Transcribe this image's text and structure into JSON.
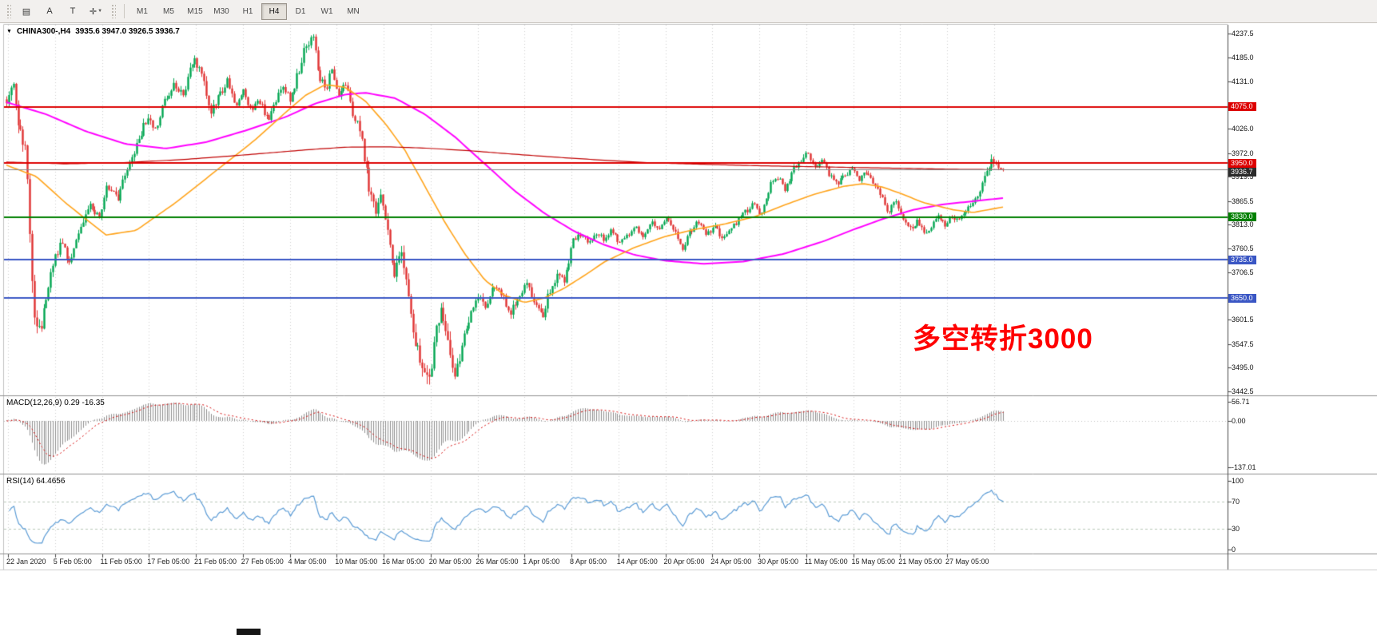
{
  "toolbar": {
    "tools": [
      {
        "name": "templates",
        "glyph": "▤"
      },
      {
        "name": "text-annotation",
        "glyph": "A"
      },
      {
        "name": "label-tool",
        "glyph": "T"
      },
      {
        "name": "crosshair",
        "glyph": "✛",
        "has_caret": true
      }
    ],
    "timeframes": [
      {
        "label": "M1",
        "active": false
      },
      {
        "label": "M5",
        "active": false
      },
      {
        "label": "M15",
        "active": false
      },
      {
        "label": "M30",
        "active": false
      },
      {
        "label": "H1",
        "active": false
      },
      {
        "label": "H4",
        "active": true
      },
      {
        "label": "D1",
        "active": false
      },
      {
        "label": "W1",
        "active": false
      },
      {
        "label": "MN",
        "active": false
      }
    ]
  },
  "chart": {
    "symbol_label": "CHINA300-,H4",
    "ohlc_text": "3935.6 3947.0 3926.5 3936.7",
    "annotation": {
      "text": "多空转折3000",
      "color": "#ff0000"
    },
    "price_axis": {
      "min": 3442.5,
      "max": 4237.5,
      "labels": [
        {
          "value": 4237.5,
          "text": "4237.5"
        },
        {
          "value": 4185.0,
          "text": "4185.0"
        },
        {
          "value": 4131.0,
          "text": "4131.0"
        },
        {
          "value": 4026.0,
          "text": "4026.0"
        },
        {
          "value": 3972.0,
          "text": "3972.0"
        },
        {
          "value": 3919.5,
          "text": "3919.5"
        },
        {
          "value": 3865.5,
          "text": "3865.5"
        },
        {
          "value": 3813.0,
          "text": "3813.0"
        },
        {
          "value": 3760.5,
          "text": "3760.5"
        },
        {
          "value": 3706.5,
          "text": "3706.5"
        },
        {
          "value": 3601.5,
          "text": "3601.5"
        },
        {
          "value": 3547.5,
          "text": "3547.5"
        },
        {
          "value": 3495.0,
          "text": "3495.0"
        },
        {
          "value": 3442.5,
          "text": "3442.5"
        }
      ]
    },
    "date_labels": [
      "22 Jan 2020",
      "5 Feb 05:00",
      "11 Feb 05:00",
      "17 Feb 05:00",
      "21 Feb 05:00",
      "27 Feb 05:00",
      "4 Mar 05:00",
      "10 Mar 05:00",
      "16 Mar 05:00",
      "20 Mar 05:00",
      "26 Mar 05:00",
      "1 Apr 05:00",
      "8 Apr 05:00",
      "14 Apr 05:00",
      "20 Apr 05:00",
      "24 Apr 05:00",
      "30 Apr 05:00",
      "11 May 05:00",
      "15 May 05:00",
      "21 May 05:00",
      "27 May 05:00"
    ],
    "levels": [
      {
        "value": 4075.0,
        "text": "4075.0",
        "color": "#dd0000",
        "width": 2
      },
      {
        "value": 3950.0,
        "text": "3950.0",
        "color": "#dd0000",
        "width": 2
      },
      {
        "value": 3830.0,
        "text": "3830.0",
        "color": "#008000",
        "width": 2
      },
      {
        "value": 3735.0,
        "text": "3735.0",
        "color": "#3a56c4",
        "width": 2
      },
      {
        "value": 3650.0,
        "text": "3650.0",
        "color": "#3a56c4",
        "width": 2
      }
    ],
    "price_marker": {
      "value": 3936.7,
      "text": "3936.7",
      "badge_color": "#2b2b2b",
      "line_color": "#8a8a8a"
    },
    "colors": {
      "bull": "#00a651",
      "bear": "#e03232",
      "ma_orange": "#ffa31a",
      "ma_magenta": "#ff00ff",
      "ma_red": "#c00000",
      "grid": "#cfcfcf",
      "macd_bar": "#8f8f8f",
      "macd_signal": "#d40000",
      "rsi_line": "#5b9bd5",
      "rsi_level": "#b7c7b7"
    }
  },
  "chart_data": {
    "type": "candlestick",
    "symbol": "CHINA300-",
    "timeframe": "H4",
    "last_bar": {
      "open": 3935.6,
      "high": 3947.0,
      "low": 3926.5,
      "close": 3936.7
    },
    "price_range": [
      3442.5,
      4237.5
    ],
    "current_price": 3936.7,
    "horizontal_levels": [
      4075.0,
      3950.0,
      3830.0,
      3735.0,
      3650.0
    ],
    "candles_count": 430,
    "price_path_anchors": [
      [
        0.0,
        4090,
        26
      ],
      [
        0.006,
        4140,
        26
      ],
      [
        0.012,
        4030,
        30
      ],
      [
        0.018,
        3985,
        26
      ],
      [
        0.021,
        3930,
        42
      ],
      [
        0.025,
        3700,
        48
      ],
      [
        0.031,
        3558,
        36
      ],
      [
        0.038,
        3620,
        26
      ],
      [
        0.046,
        3722,
        20
      ],
      [
        0.055,
        3772,
        16
      ],
      [
        0.063,
        3730,
        16
      ],
      [
        0.074,
        3802,
        16
      ],
      [
        0.084,
        3852,
        16
      ],
      [
        0.093,
        3826,
        13
      ],
      [
        0.101,
        3902,
        16
      ],
      [
        0.111,
        3868,
        16
      ],
      [
        0.121,
        3938,
        16
      ],
      [
        0.132,
        3998,
        16
      ],
      [
        0.141,
        4052,
        19
      ],
      [
        0.149,
        4018,
        16
      ],
      [
        0.158,
        4088,
        16
      ],
      [
        0.169,
        4128,
        19
      ],
      [
        0.177,
        4098,
        16
      ],
      [
        0.188,
        4186,
        21
      ],
      [
        0.196,
        4148,
        19
      ],
      [
        0.205,
        4062,
        21
      ],
      [
        0.213,
        4096,
        16
      ],
      [
        0.222,
        4132,
        16
      ],
      [
        0.23,
        4078,
        16
      ],
      [
        0.238,
        4112,
        16
      ],
      [
        0.246,
        4058,
        16
      ],
      [
        0.253,
        4096,
        16
      ],
      [
        0.262,
        4042,
        16
      ],
      [
        0.27,
        4086,
        16
      ],
      [
        0.277,
        4126,
        16
      ],
      [
        0.285,
        4092,
        16
      ],
      [
        0.293,
        4152,
        19
      ],
      [
        0.301,
        4216,
        21
      ],
      [
        0.307,
        4232,
        23
      ],
      [
        0.313,
        4152,
        21
      ],
      [
        0.32,
        4112,
        19
      ],
      [
        0.326,
        4152,
        19
      ],
      [
        0.333,
        4102,
        19
      ],
      [
        0.34,
        4132,
        16
      ],
      [
        0.348,
        4056,
        21
      ],
      [
        0.355,
        4016,
        21
      ],
      [
        0.363,
        3906,
        32
      ],
      [
        0.37,
        3846,
        26
      ],
      [
        0.376,
        3886,
        21
      ],
      [
        0.383,
        3796,
        26
      ],
      [
        0.389,
        3706,
        32
      ],
      [
        0.396,
        3746,
        26
      ],
      [
        0.403,
        3646,
        32
      ],
      [
        0.41,
        3562,
        32
      ],
      [
        0.417,
        3506,
        32
      ],
      [
        0.423,
        3456,
        36
      ],
      [
        0.43,
        3562,
        32
      ],
      [
        0.437,
        3626,
        26
      ],
      [
        0.444,
        3540,
        32
      ],
      [
        0.45,
        3476,
        32
      ],
      [
        0.458,
        3560,
        26
      ],
      [
        0.465,
        3606,
        21
      ],
      [
        0.474,
        3650,
        19
      ],
      [
        0.482,
        3630,
        16
      ],
      [
        0.489,
        3682,
        16
      ],
      [
        0.498,
        3650,
        16
      ],
      [
        0.505,
        3612,
        16
      ],
      [
        0.514,
        3656,
        16
      ],
      [
        0.522,
        3686,
        16
      ],
      [
        0.529,
        3645,
        16
      ],
      [
        0.538,
        3606,
        19
      ],
      [
        0.544,
        3660,
        16
      ],
      [
        0.552,
        3700,
        16
      ],
      [
        0.56,
        3686,
        13
      ],
      [
        0.568,
        3780,
        16
      ],
      [
        0.576,
        3790,
        11
      ],
      [
        0.583,
        3776,
        11
      ],
      [
        0.592,
        3792,
        11
      ],
      [
        0.599,
        3782,
        11
      ],
      [
        0.608,
        3802,
        11
      ],
      [
        0.615,
        3766,
        13
      ],
      [
        0.623,
        3790,
        11
      ],
      [
        0.631,
        3812,
        11
      ],
      [
        0.639,
        3782,
        11
      ],
      [
        0.647,
        3820,
        11
      ],
      [
        0.655,
        3802,
        11
      ],
      [
        0.663,
        3832,
        11
      ],
      [
        0.671,
        3792,
        13
      ],
      [
        0.678,
        3762,
        13
      ],
      [
        0.687,
        3800,
        11
      ],
      [
        0.694,
        3820,
        11
      ],
      [
        0.703,
        3792,
        11
      ],
      [
        0.71,
        3812,
        11
      ],
      [
        0.718,
        3782,
        11
      ],
      [
        0.726,
        3802,
        11
      ],
      [
        0.734,
        3822,
        11
      ],
      [
        0.742,
        3842,
        11
      ],
      [
        0.75,
        3862,
        11
      ],
      [
        0.757,
        3832,
        11
      ],
      [
        0.766,
        3900,
        13
      ],
      [
        0.773,
        3922,
        11
      ],
      [
        0.781,
        3892,
        11
      ],
      [
        0.789,
        3932,
        11
      ],
      [
        0.796,
        3952,
        13
      ],
      [
        0.804,
        3974,
        13
      ],
      [
        0.811,
        3942,
        11
      ],
      [
        0.819,
        3952,
        11
      ],
      [
        0.826,
        3922,
        11
      ],
      [
        0.833,
        3902,
        11
      ],
      [
        0.841,
        3922,
        11
      ],
      [
        0.848,
        3936,
        11
      ],
      [
        0.855,
        3912,
        11
      ],
      [
        0.863,
        3932,
        11
      ],
      [
        0.87,
        3902,
        11
      ],
      [
        0.878,
        3872,
        13
      ],
      [
        0.885,
        3842,
        13
      ],
      [
        0.892,
        3862,
        11
      ],
      [
        0.899,
        3832,
        13
      ],
      [
        0.907,
        3802,
        13
      ],
      [
        0.914,
        3822,
        11
      ],
      [
        0.921,
        3792,
        13
      ],
      [
        0.928,
        3812,
        11
      ],
      [
        0.935,
        3832,
        11
      ],
      [
        0.942,
        3812,
        11
      ],
      [
        0.949,
        3832,
        11
      ],
      [
        0.956,
        3822,
        11
      ],
      [
        0.963,
        3842,
        11
      ],
      [
        0.974,
        3872,
        16
      ],
      [
        0.988,
        3952,
        21
      ],
      [
        1.0,
        3937,
        13
      ]
    ],
    "moving_average_paths": {
      "orange": [
        [
          0,
          3945
        ],
        [
          0.03,
          3920
        ],
        [
          0.06,
          3860
        ],
        [
          0.1,
          3790
        ],
        [
          0.13,
          3800
        ],
        [
          0.17,
          3862
        ],
        [
          0.21,
          3932
        ],
        [
          0.25,
          4002
        ],
        [
          0.28,
          4062
        ],
        [
          0.3,
          4100
        ],
        [
          0.32,
          4124
        ],
        [
          0.34,
          4118
        ],
        [
          0.36,
          4088
        ],
        [
          0.38,
          4038
        ],
        [
          0.4,
          3978
        ],
        [
          0.42,
          3898
        ],
        [
          0.44,
          3818
        ],
        [
          0.46,
          3748
        ],
        [
          0.48,
          3690
        ],
        [
          0.5,
          3656
        ],
        [
          0.52,
          3640
        ],
        [
          0.54,
          3650
        ],
        [
          0.56,
          3672
        ],
        [
          0.58,
          3700
        ],
        [
          0.6,
          3730
        ],
        [
          0.63,
          3762
        ],
        [
          0.66,
          3786
        ],
        [
          0.69,
          3802
        ],
        [
          0.72,
          3814
        ],
        [
          0.75,
          3830
        ],
        [
          0.78,
          3856
        ],
        [
          0.81,
          3880
        ],
        [
          0.84,
          3898
        ],
        [
          0.86,
          3904
        ],
        [
          0.88,
          3896
        ],
        [
          0.9,
          3880
        ],
        [
          0.92,
          3862
        ],
        [
          0.95,
          3846
        ],
        [
          0.97,
          3840
        ],
        [
          1.0,
          3852
        ]
      ],
      "magenta": [
        [
          0,
          4085
        ],
        [
          0.04,
          4058
        ],
        [
          0.08,
          4020
        ],
        [
          0.12,
          3992
        ],
        [
          0.16,
          3982
        ],
        [
          0.2,
          3996
        ],
        [
          0.24,
          4022
        ],
        [
          0.28,
          4052
        ],
        [
          0.31,
          4082
        ],
        [
          0.34,
          4102
        ],
        [
          0.36,
          4106
        ],
        [
          0.39,
          4094
        ],
        [
          0.42,
          4058
        ],
        [
          0.45,
          4008
        ],
        [
          0.48,
          3948
        ],
        [
          0.51,
          3888
        ],
        [
          0.54,
          3838
        ],
        [
          0.57,
          3798
        ],
        [
          0.6,
          3768
        ],
        [
          0.63,
          3746
        ],
        [
          0.66,
          3733
        ],
        [
          0.7,
          3726
        ],
        [
          0.74,
          3731
        ],
        [
          0.78,
          3748
        ],
        [
          0.82,
          3776
        ],
        [
          0.85,
          3802
        ],
        [
          0.88,
          3826
        ],
        [
          0.91,
          3846
        ],
        [
          0.94,
          3858
        ],
        [
          0.97,
          3865
        ],
        [
          1.0,
          3872
        ]
      ],
      "red": [
        [
          0,
          3952
        ],
        [
          0.06,
          3948
        ],
        [
          0.12,
          3951
        ],
        [
          0.18,
          3958
        ],
        [
          0.24,
          3968
        ],
        [
          0.3,
          3979
        ],
        [
          0.34,
          3985
        ],
        [
          0.38,
          3986
        ],
        [
          0.42,
          3983
        ],
        [
          0.46,
          3978
        ],
        [
          0.5,
          3971
        ],
        [
          0.55,
          3963
        ],
        [
          0.6,
          3956
        ],
        [
          0.65,
          3950
        ],
        [
          0.7,
          3947
        ],
        [
          0.75,
          3944
        ],
        [
          0.8,
          3942
        ],
        [
          0.85,
          3940
        ],
        [
          0.9,
          3938
        ],
        [
          0.95,
          3936
        ],
        [
          1.0,
          3935
        ]
      ]
    },
    "indicators": {
      "macd": {
        "text": "MACD(12,26,9) 0.29 -16.35",
        "params": [
          12,
          26,
          9
        ],
        "current_values": [
          0.29,
          -16.35
        ],
        "range": [
          -137.01,
          56.71
        ],
        "axis": [
          {
            "value": 56.71,
            "text": "56.71"
          },
          {
            "value": 0,
            "text": "0.00"
          },
          {
            "value": -137.01,
            "text": "-137.01"
          }
        ]
      },
      "rsi": {
        "text": "RSI(14) 64.4656",
        "period": 14,
        "current_value": 64.4656,
        "levels": [
          70,
          30
        ],
        "range": [
          0,
          100
        ],
        "axis": [
          {
            "value": 100,
            "text": "100"
          },
          {
            "value": 70,
            "text": "70"
          },
          {
            "value": 30,
            "text": "30"
          },
          {
            "value": 0,
            "text": "0"
          }
        ]
      }
    }
  }
}
